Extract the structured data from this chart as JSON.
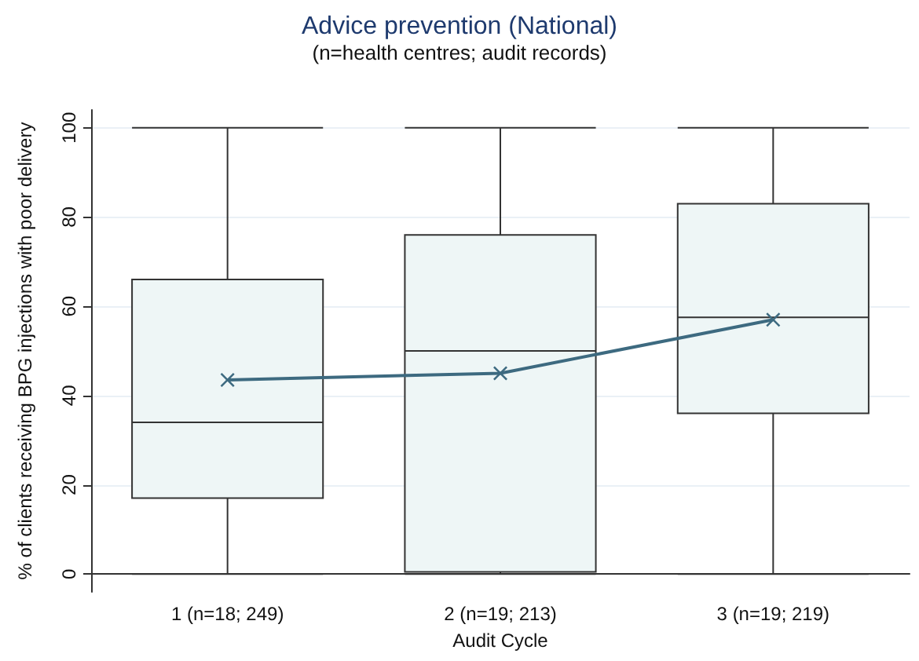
{
  "chart_data": {
    "type": "box",
    "title": "Advice prevention (National)",
    "subtitle": "(n=health centres; audit records)",
    "xlabel": "Audit Cycle",
    "ylabel": "% of clients receiving BPG injections with poor delivery",
    "categories": [
      "1 (n=18; 249)",
      "2 (n=19; 213)",
      "3 (n=19; 219)"
    ],
    "series": [
      {
        "color": "#eef6f6",
        "boxes": [
          {
            "low": 0,
            "q1": 17,
            "median": 34,
            "q3": 66,
            "high": 100
          },
          {
            "low": 0,
            "q1": 0.5,
            "median": 50,
            "q3": 76,
            "high": 100
          },
          {
            "low": 0,
            "q1": 36,
            "median": 57.5,
            "q3": 83,
            "high": 100
          }
        ]
      },
      {
        "type": "line",
        "color": "#3d6a80",
        "marker": "cross",
        "x": [
          "1 (n=18; 249)",
          "2 (n=19; 213)",
          "3 (n=19; 219)"
        ],
        "values": [
          43.5,
          45,
          57
        ]
      }
    ],
    "ylim": [
      -4,
      104
    ],
    "yticks": [
      0,
      20,
      40,
      60,
      80,
      100
    ],
    "grid": "y"
  }
}
